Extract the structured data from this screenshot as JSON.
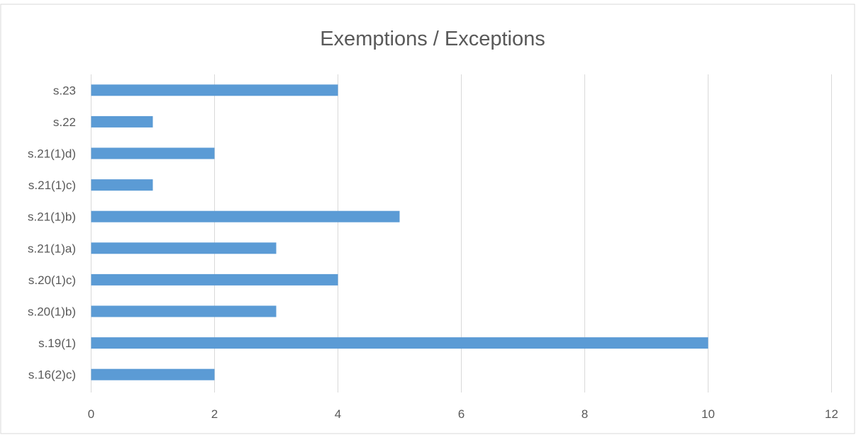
{
  "chart_data": {
    "type": "bar",
    "orientation": "horizontal",
    "title": "Exemptions / Exceptions",
    "categories": [
      "s.16(2)c)",
      "s.19(1)",
      "s.20(1)b)",
      "s.20(1)c)",
      "s.21(1)a)",
      "s.21(1)b)",
      "s.21(1)c)",
      "s.21(1)d)",
      "s.22",
      "s.23"
    ],
    "values": [
      2,
      10,
      3,
      4,
      3,
      5,
      1,
      2,
      1,
      4
    ],
    "xlim": [
      0,
      12
    ],
    "xticks": [
      "0",
      "2",
      "4",
      "6",
      "8",
      "10",
      "12"
    ],
    "grid": true,
    "legend": "none",
    "colors": {
      "bar": "#5b9bd5",
      "grid": "#d9d9d9",
      "text": "#595959",
      "border": "#d9d9d9"
    }
  }
}
